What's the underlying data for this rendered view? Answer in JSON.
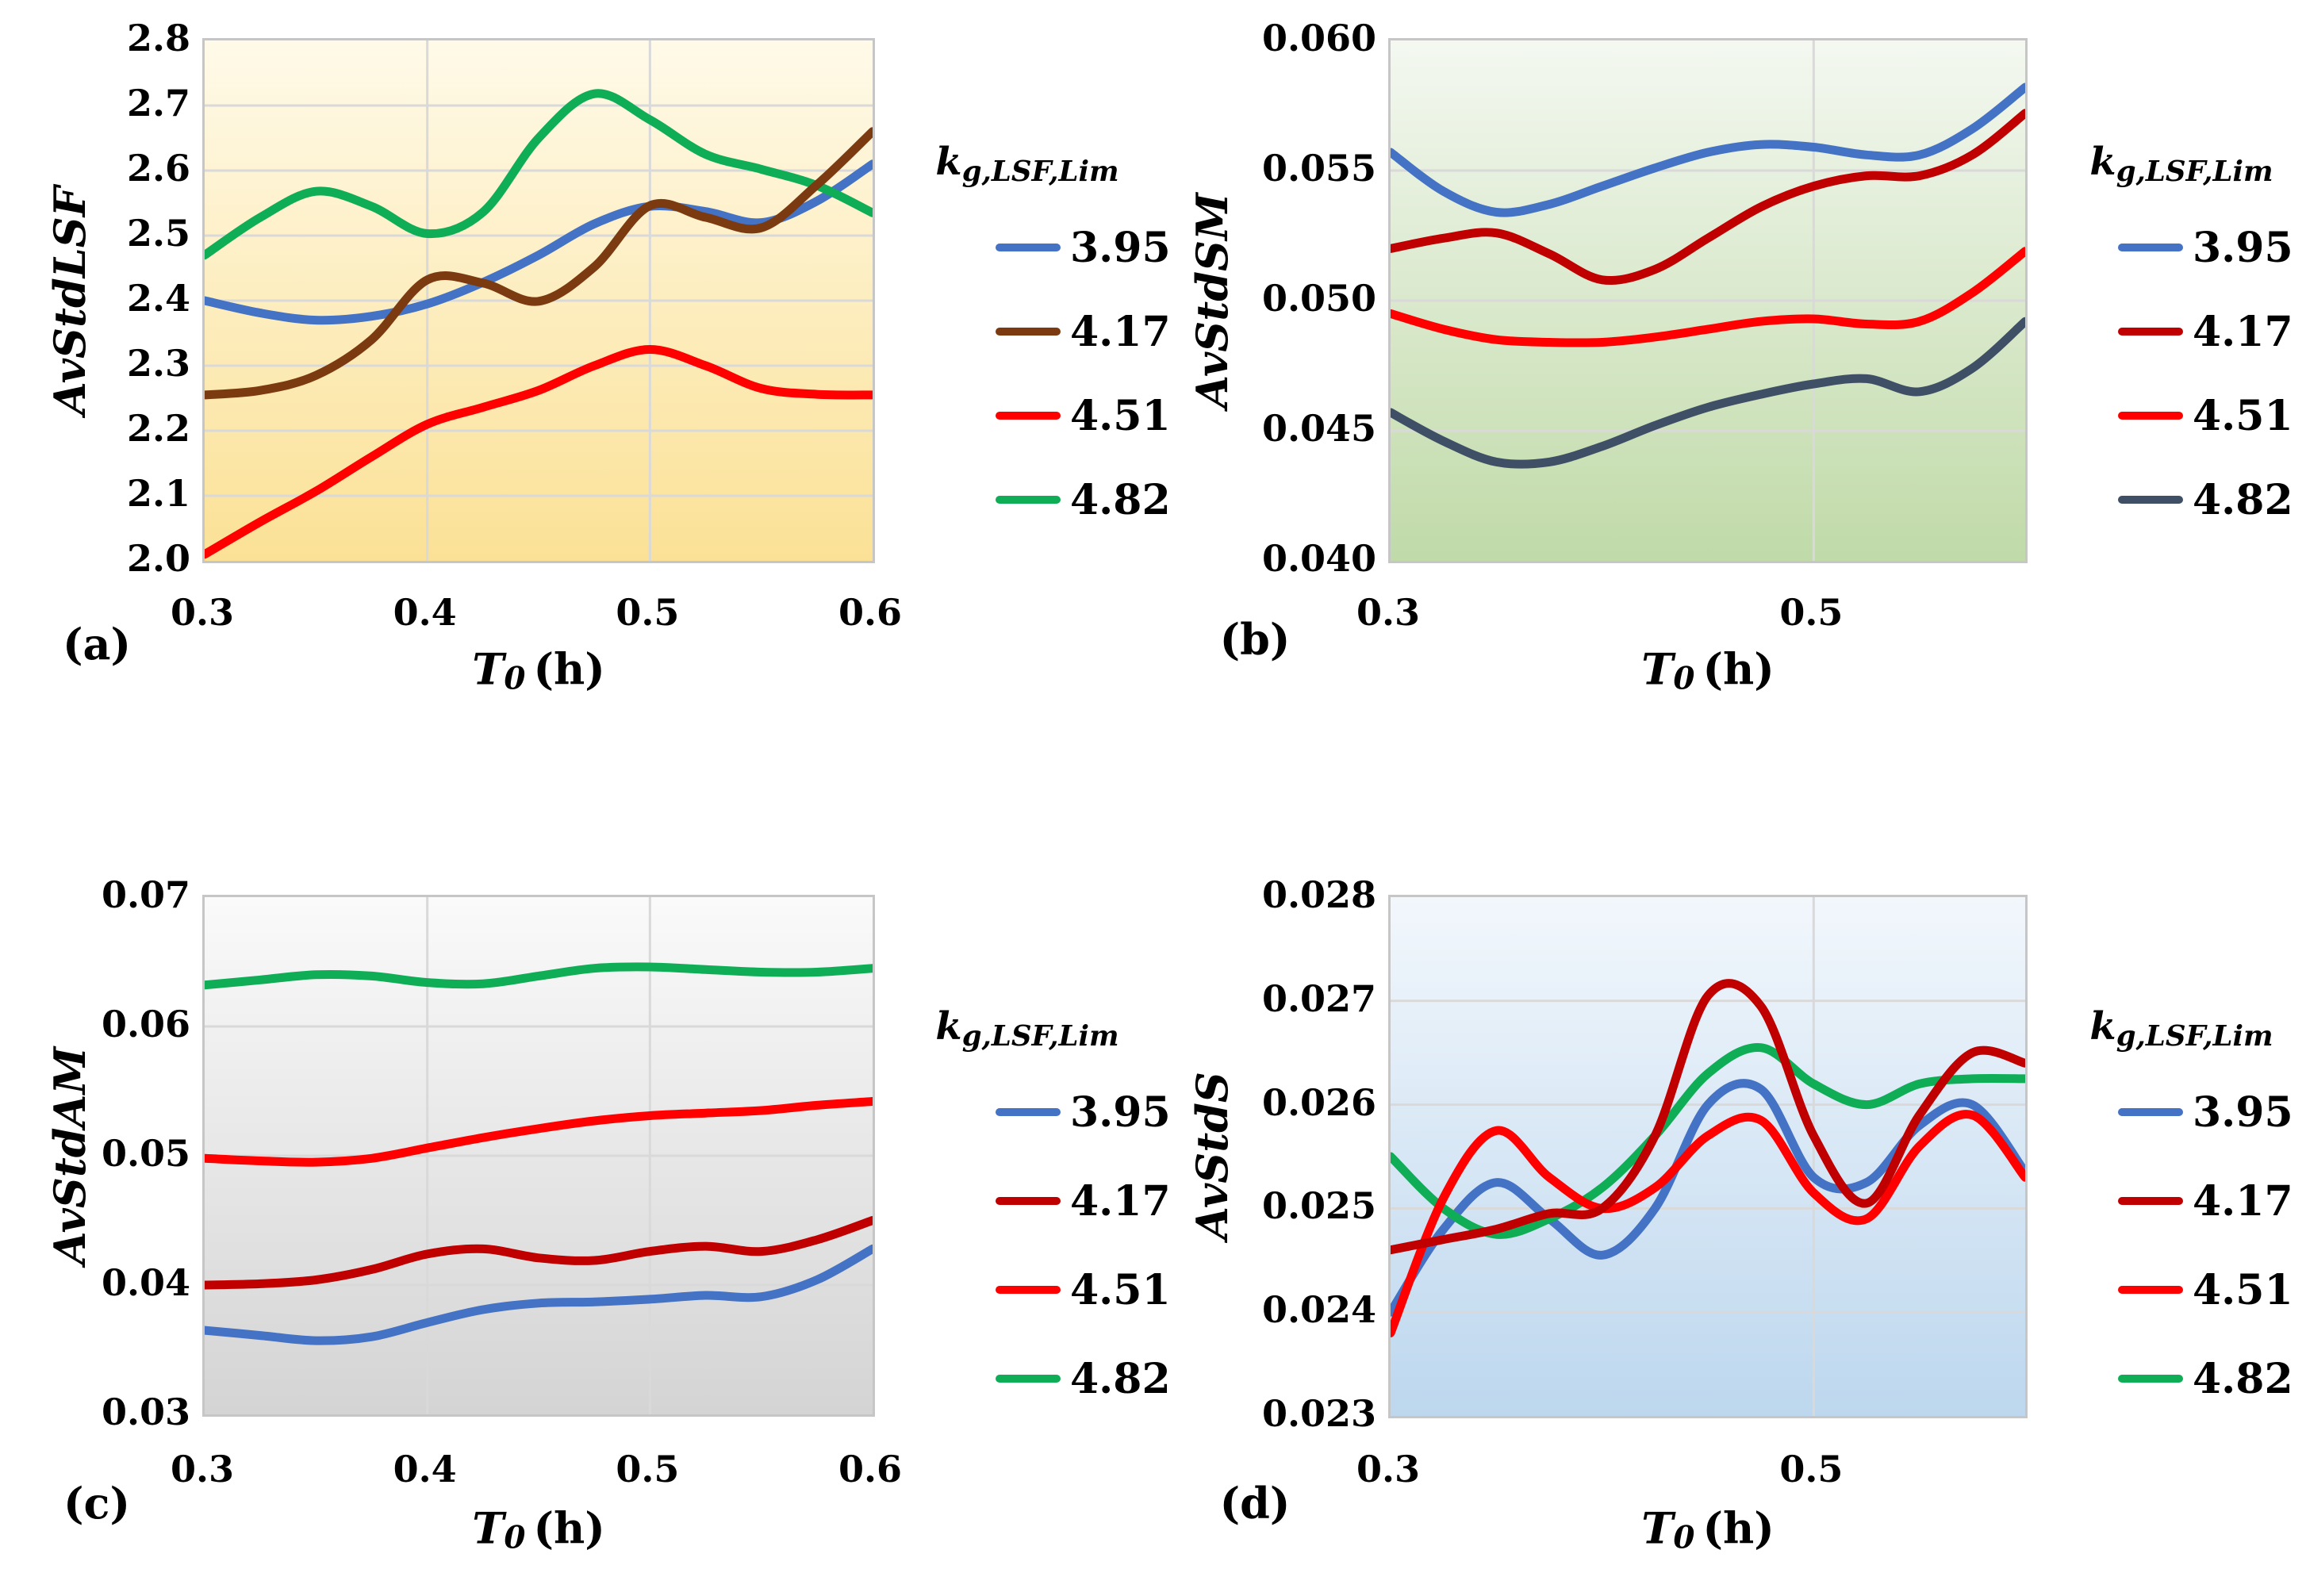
{
  "figure": {
    "legend_title": {
      "main": "k",
      "sub": "g,LSF,Lim"
    },
    "xaxis_title": {
      "var": "T",
      "sub": "0",
      "unit": "(h)"
    }
  },
  "chart_data": [
    {
      "type": "line",
      "tag": "(a)",
      "ylabel": "AvStdLSF",
      "xlabel": "T0 (h)",
      "legend_title": "kg,LSF,Lim",
      "ylim": [
        2.0,
        2.8
      ],
      "xlim": [
        0.3,
        0.6
      ],
      "yticks": [
        {
          "v": 2.8,
          "label": "2.8"
        },
        {
          "v": 2.7,
          "label": "2.7"
        },
        {
          "v": 2.6,
          "label": "2.6"
        },
        {
          "v": 2.5,
          "label": "2.5"
        },
        {
          "v": 2.4,
          "label": "2.4"
        },
        {
          "v": 2.3,
          "label": "2.3"
        },
        {
          "v": 2.2,
          "label": "2.2"
        },
        {
          "v": 2.1,
          "label": "2.1"
        },
        {
          "v": 2.0,
          "label": "2.0"
        }
      ],
      "xticks": [
        {
          "v": 0.3,
          "label": "0.3"
        },
        {
          "v": 0.4,
          "label": "0.4"
        },
        {
          "v": 0.5,
          "label": "0.5"
        },
        {
          "v": 0.6,
          "label": "0.6"
        }
      ],
      "grid_x": [
        0.4,
        0.5
      ],
      "bg": {
        "top": "#FFFAE9",
        "bottom": "#FBE196"
      },
      "x": [
        0.3,
        0.325,
        0.35,
        0.375,
        0.4,
        0.425,
        0.45,
        0.475,
        0.5,
        0.525,
        0.55,
        0.575,
        0.6
      ],
      "series": [
        {
          "label": "3.95",
          "color": "#4472C4",
          "values": [
            2.4,
            2.381,
            2.37,
            2.376,
            2.395,
            2.428,
            2.47,
            2.518,
            2.545,
            2.537,
            2.52,
            2.553,
            2.61
          ]
        },
        {
          "label": "4.17",
          "color": "#7B3A0F",
          "values": [
            2.255,
            2.262,
            2.285,
            2.34,
            2.432,
            2.427,
            2.399,
            2.452,
            2.546,
            2.528,
            2.512,
            2.578,
            2.66
          ]
        },
        {
          "label": "4.51",
          "color": "#FF0000",
          "values": [
            2.01,
            2.06,
            2.107,
            2.16,
            2.21,
            2.236,
            2.262,
            2.3,
            2.325,
            2.3,
            2.265,
            2.256,
            2.255
          ]
        },
        {
          "label": "4.82",
          "color": "#10AD57",
          "values": [
            2.47,
            2.528,
            2.568,
            2.545,
            2.503,
            2.536,
            2.65,
            2.718,
            2.678,
            2.625,
            2.602,
            2.577,
            2.535
          ]
        }
      ]
    },
    {
      "type": "line",
      "tag": "(b)",
      "ylabel": "AvStdSM",
      "xlabel": "T0 (h)",
      "legend_title": "kg,LSF,Lim",
      "ylim": [
        0.04,
        0.06
      ],
      "xlim": [
        0.3,
        0.6
      ],
      "yticks": [
        {
          "v": 0.06,
          "label": "0.060"
        },
        {
          "v": 0.055,
          "label": "0.055"
        },
        {
          "v": 0.05,
          "label": "0.050"
        },
        {
          "v": 0.045,
          "label": "0.045"
        },
        {
          "v": 0.04,
          "label": "0.040"
        }
      ],
      "xticks": [
        {
          "v": 0.3,
          "label": "0.3"
        },
        {
          "v": 0.5,
          "label": "0.5"
        }
      ],
      "grid_x": [
        0.5
      ],
      "bg": {
        "top": "#F4F8F1",
        "bottom": "#C0DAA8"
      },
      "x": [
        0.3,
        0.325,
        0.35,
        0.375,
        0.4,
        0.425,
        0.45,
        0.475,
        0.5,
        0.525,
        0.55,
        0.575,
        0.6
      ],
      "series": [
        {
          "label": "3.95",
          "color": "#4472C4",
          "values": [
            0.0557,
            0.0542,
            0.0534,
            0.0537,
            0.0544,
            0.0551,
            0.0557,
            0.056,
            0.0559,
            0.0556,
            0.0556,
            0.0566,
            0.0582
          ]
        },
        {
          "label": "4.17",
          "color": "#C00000",
          "values": [
            0.052,
            0.0524,
            0.0526,
            0.0518,
            0.0508,
            0.0512,
            0.0524,
            0.0536,
            0.0544,
            0.0548,
            0.0548,
            0.0556,
            0.0572
          ]
        },
        {
          "label": "4.51",
          "color": "#FF0000",
          "values": [
            0.0495,
            0.0489,
            0.0485,
            0.0484,
            0.0484,
            0.0486,
            0.0489,
            0.0492,
            0.0493,
            0.0491,
            0.0492,
            0.0503,
            0.0519
          ]
        },
        {
          "label": "4.82",
          "color": "#3F4F66",
          "values": [
            0.0457,
            0.0446,
            0.0438,
            0.0438,
            0.0444,
            0.0452,
            0.0459,
            0.0464,
            0.0468,
            0.047,
            0.0465,
            0.0474,
            0.0492
          ]
        }
      ]
    },
    {
      "type": "line",
      "tag": "(c)",
      "ylabel": "AvStdAM",
      "xlabel": "T0 (h)",
      "legend_title": "kg,LSF,Lim",
      "ylim": [
        0.03,
        0.07
      ],
      "xlim": [
        0.3,
        0.6
      ],
      "yticks": [
        {
          "v": 0.07,
          "label": "0.07"
        },
        {
          "v": 0.06,
          "label": "0.06"
        },
        {
          "v": 0.05,
          "label": "0.05"
        },
        {
          "v": 0.04,
          "label": "0.04"
        },
        {
          "v": 0.03,
          "label": "0.03"
        }
      ],
      "xticks": [
        {
          "v": 0.3,
          "label": "0.3"
        },
        {
          "v": 0.4,
          "label": "0.4"
        },
        {
          "v": 0.5,
          "label": "0.5"
        },
        {
          "v": 0.6,
          "label": "0.6"
        }
      ],
      "grid_x": [
        0.4,
        0.5
      ],
      "bg": {
        "top": "#FAFAFA",
        "bottom": "#D4D4D4"
      },
      "x": [
        0.3,
        0.325,
        0.35,
        0.375,
        0.4,
        0.425,
        0.45,
        0.475,
        0.5,
        0.525,
        0.55,
        0.575,
        0.6
      ],
      "series": [
        {
          "label": "3.95",
          "color": "#4472C4",
          "values": [
            0.0365,
            0.0361,
            0.0357,
            0.036,
            0.0371,
            0.0381,
            0.0386,
            0.0387,
            0.0389,
            0.0392,
            0.0391,
            0.0404,
            0.0428
          ]
        },
        {
          "label": "4.17",
          "color": "#C00000",
          "values": [
            0.04,
            0.0401,
            0.0404,
            0.0412,
            0.0424,
            0.0428,
            0.0421,
            0.0419,
            0.0426,
            0.043,
            0.0426,
            0.0435,
            0.045
          ]
        },
        {
          "label": "4.51",
          "color": "#FF0000",
          "values": [
            0.0498,
            0.0496,
            0.0495,
            0.0498,
            0.0506,
            0.0514,
            0.0521,
            0.0527,
            0.0531,
            0.0533,
            0.0535,
            0.0539,
            0.0542
          ]
        },
        {
          "label": "4.82",
          "color": "#10AD57",
          "values": [
            0.0632,
            0.0636,
            0.064,
            0.0639,
            0.0634,
            0.0633,
            0.0639,
            0.0645,
            0.0646,
            0.0644,
            0.0642,
            0.0642,
            0.0645
          ]
        }
      ]
    },
    {
      "type": "line",
      "tag": "(d)",
      "ylabel": "AvStdS",
      "xlabel": "T0 (h)",
      "legend_title": "kg,LSF,Lim",
      "ylim": [
        0.023,
        0.028
      ],
      "xlim": [
        0.3,
        0.6
      ],
      "yticks": [
        {
          "v": 0.028,
          "label": "0.028"
        },
        {
          "v": 0.027,
          "label": "0.027"
        },
        {
          "v": 0.026,
          "label": "0.026"
        },
        {
          "v": 0.025,
          "label": "0.025"
        },
        {
          "v": 0.024,
          "label": "0.024"
        },
        {
          "v": 0.023,
          "label": "0.023"
        }
      ],
      "xticks": [
        {
          "v": 0.3,
          "label": "0.3"
        },
        {
          "v": 0.5,
          "label": "0.5"
        }
      ],
      "grid_x": [
        0.5
      ],
      "bg": {
        "top": "#F2F7FC",
        "bottom": "#BDD7EE"
      },
      "x": [
        0.3,
        0.325,
        0.35,
        0.375,
        0.4,
        0.425,
        0.45,
        0.475,
        0.5,
        0.525,
        0.55,
        0.575,
        0.6
      ],
      "series": [
        {
          "label": "3.95",
          "color": "#4472C4",
          "values": [
            0.024,
            0.0248,
            0.02525,
            0.0249,
            0.02455,
            0.025,
            0.026,
            0.02615,
            0.0253,
            0.02525,
            0.0258,
            0.026,
            0.02535
          ]
        },
        {
          "label": "4.17",
          "color": "#C00000",
          "values": [
            0.0246,
            0.0247,
            0.0248,
            0.02495,
            0.025,
            0.0257,
            0.02705,
            0.02695,
            0.0257,
            0.02505,
            0.0259,
            0.0265,
            0.0264
          ]
        },
        {
          "label": "4.51",
          "color": "#FF0000",
          "values": [
            0.0238,
            0.0251,
            0.02575,
            0.0253,
            0.025,
            0.0252,
            0.0257,
            0.02585,
            0.02515,
            0.0249,
            0.0256,
            0.0259,
            0.0253
          ]
        },
        {
          "label": "4.82",
          "color": "#10AD57",
          "values": [
            0.0255,
            0.025,
            0.02475,
            0.0249,
            0.0252,
            0.0257,
            0.0263,
            0.02655,
            0.0262,
            0.026,
            0.0262,
            0.02625,
            0.02625
          ]
        }
      ]
    }
  ]
}
